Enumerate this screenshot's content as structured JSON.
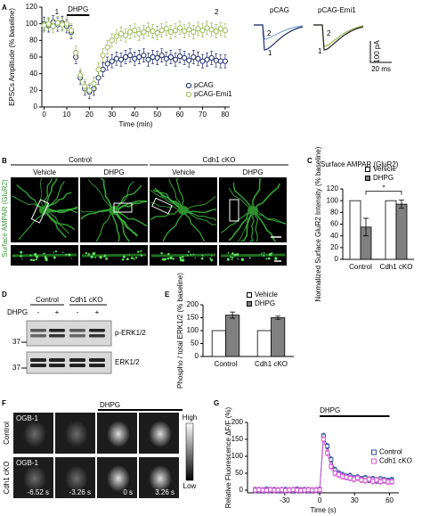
{
  "panel_labels": [
    "A",
    "B",
    "C",
    "D",
    "E",
    "F",
    "G"
  ],
  "chart_data": [
    {
      "type": "line",
      "xlabel": "Time (min)",
      "ylabel": "EPSCs Amplitude (% baseline)",
      "x": [
        0,
        2,
        4,
        6,
        8,
        10,
        12,
        14,
        16,
        18,
        20,
        22,
        24,
        26,
        28,
        30,
        32,
        34,
        36,
        38,
        40,
        42,
        44,
        46,
        48,
        50,
        52,
        54,
        56,
        58,
        60,
        62,
        64,
        66,
        68,
        70,
        72,
        74,
        76,
        78,
        80
      ],
      "xlim": [
        -1,
        82
      ],
      "xticks": [
        0,
        10,
        20,
        30,
        40,
        50,
        60,
        70,
        80
      ],
      "ylim": [
        0,
        120
      ],
      "yticks": [
        0,
        20,
        40,
        60,
        80,
        100,
        120
      ],
      "lines": false,
      "legend": "lower right",
      "treatment": {
        "label": "DHPG",
        "start": 10,
        "end": 20
      },
      "annotations": [
        "1",
        "2"
      ],
      "series": [
        {
          "name": "pCAG",
          "color": "#1f2d6b",
          "marker": "circle",
          "error": 8,
          "values": [
            100,
            98,
            102,
            99,
            101,
            97,
            90,
            60,
            35,
            22,
            18,
            22,
            35,
            45,
            52,
            55,
            58,
            57,
            60,
            62,
            58,
            60,
            62,
            57,
            60,
            59,
            62,
            58,
            60,
            57,
            61,
            59,
            56,
            60,
            58,
            55,
            57,
            59,
            56,
            55,
            55
          ]
        },
        {
          "name": "pCAG-Emi1",
          "color": "#9bbb59",
          "marker": "circle",
          "error": 8,
          "values": [
            98,
            100,
            97,
            101,
            99,
            100,
            92,
            65,
            38,
            25,
            20,
            28,
            45,
            62,
            72,
            80,
            85,
            88,
            86,
            90,
            92,
            88,
            90,
            93,
            91,
            89,
            92,
            94,
            90,
            92,
            95,
            91,
            93,
            90,
            94,
            92,
            95,
            93,
            91,
            94,
            92
          ]
        }
      ]
    },
    {
      "type": "bar",
      "title": "Surface AMPAR (GluR2)",
      "ylabel": "Normalized Surface GluR2 Intensity (% baseline)",
      "categories": [
        "Control",
        "Cdh1 cKO"
      ],
      "ylim": [
        0,
        120
      ],
      "yticks": [
        0,
        20,
        40,
        60,
        80,
        100,
        120
      ],
      "legend": "upper right",
      "significance": "*",
      "series": [
        {
          "name": "Vehicle",
          "color": "#ffffff",
          "values": [
            100,
            100
          ]
        },
        {
          "name": "DHPG",
          "color": "#808080",
          "values": [
            55,
            94
          ],
          "errors": [
            15,
            7
          ]
        }
      ]
    },
    {
      "type": "bar",
      "ylabel": "Phospho / total ERK1/2 (% baseline)",
      "categories": [
        "Control",
        "Cdh1 cKO"
      ],
      "ylim": [
        0,
        200
      ],
      "yticks": [
        0,
        50,
        100,
        150,
        200
      ],
      "legend": "upper right",
      "series": [
        {
          "name": "Vehicle",
          "color": "#ffffff",
          "values": [
            100,
            100
          ]
        },
        {
          "name": "DHPG",
          "color": "#808080",
          "values": [
            160,
            150
          ],
          "errors": [
            12,
            6
          ]
        }
      ]
    },
    {
      "type": "line",
      "xlabel": "Time (s)",
      "ylabel": "Relative Fluorescence ΔF/F (%)",
      "x": [
        -55.42,
        -52.16,
        -48.9,
        -45.64,
        -42.38,
        -39.12,
        -35.86,
        -32.6,
        -29.34,
        -26.08,
        -22.82,
        -19.56,
        -16.3,
        -13.04,
        -9.78,
        -6.52,
        -3.26,
        0,
        3.26,
        6.52,
        9.78,
        13.04,
        16.3,
        19.56,
        22.82,
        26.08,
        29.34,
        32.6,
        35.86,
        39.12,
        42.38,
        45.64,
        48.9,
        52.16,
        55.42,
        58.68,
        61.94
      ],
      "xlim": [
        -62,
        68
      ],
      "xticks": [
        -30,
        0,
        30,
        60
      ],
      "ylim": [
        -8,
        200
      ],
      "yticks": [
        0,
        50,
        100,
        150,
        200
      ],
      "lines": true,
      "legend": "center right",
      "treatment": {
        "label": "DHPG",
        "start": 0,
        "end": 60
      },
      "series": [
        {
          "name": "Control",
          "color": "#2a4d9b",
          "marker": "square",
          "error": 8,
          "values": [
            1,
            0,
            -1,
            2,
            0,
            1,
            -1,
            0,
            1,
            0,
            -1,
            2,
            0,
            1,
            0,
            -1,
            0,
            2,
            160,
            130,
            90,
            60,
            50,
            45,
            40,
            42,
            35,
            38,
            33,
            36,
            30,
            33,
            28,
            32,
            30,
            28,
            30
          ]
        },
        {
          "name": "Cdh1 cKO",
          "color": "#d65fd6",
          "marker": "square",
          "error": 8,
          "values": [
            0,
            1,
            0,
            -1,
            1,
            0,
            0,
            1,
            -1,
            0,
            1,
            0,
            -1,
            0,
            1,
            0,
            0,
            1,
            150,
            110,
            70,
            50,
            45,
            40,
            38,
            35,
            32,
            36,
            30,
            28,
            32,
            26,
            30,
            25,
            28,
            24,
            25
          ]
        }
      ]
    }
  ],
  "traces": {
    "labels": [
      "pCAG",
      "pCAG-Emi1"
    ],
    "marks": [
      "2",
      "1",
      "2",
      "1"
    ],
    "scale_y": "100 pA",
    "scale_x": "20 ms"
  },
  "imaging": {
    "groups": [
      "Control",
      "Cdh1 cKO"
    ],
    "conditions": [
      "Vehicle",
      "DHPG",
      "Vehicle",
      "DHPG"
    ],
    "ylabel": "Surface AMPAR (GluR2)"
  },
  "blot": {
    "groups": [
      "Control",
      "Cdh1 cKO"
    ],
    "treatment": "DHPG",
    "signs": [
      "-",
      "+",
      "-",
      "+"
    ],
    "bands": [
      "p-ERK1/2",
      "ERK1/2"
    ],
    "markers": [
      "37",
      "37"
    ]
  },
  "calcium": {
    "treatment": "DHPG",
    "dye": [
      "OGB-1",
      "OGB-1"
    ],
    "rows": [
      "Control",
      "Cdh1 cKO"
    ],
    "times": [
      "-6.52 s",
      "-3.26 s",
      "0 s",
      "3.26 s"
    ],
    "scale": [
      "High",
      "Low"
    ]
  }
}
